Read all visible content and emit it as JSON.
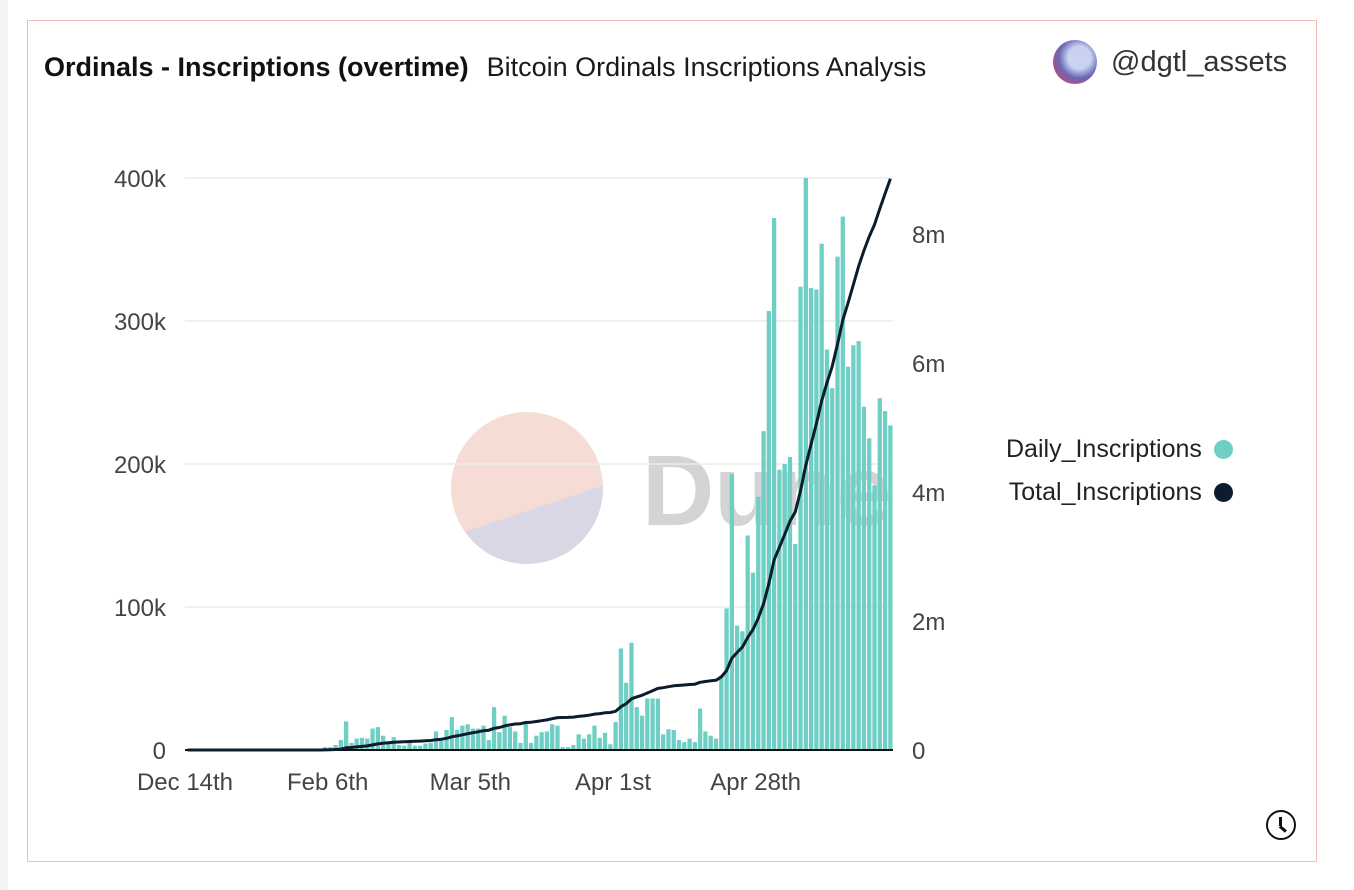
{
  "header": {
    "title": "Ordinals - Inscriptions (overtime)",
    "subtitle": "Bitcoin Ordinals Inscriptions Analysis",
    "author": "@dgtl_assets"
  },
  "watermark": "Dune",
  "colors": {
    "daily": "#6fcfc4",
    "total": "#0c1c2c"
  },
  "icons": {
    "avatar": "user-avatar",
    "refresh": "clock-icon"
  },
  "chart_data": {
    "type": "bar+line",
    "x_tick_labels": [
      "Dec 14th",
      "Feb 6th",
      "Mar 5th",
      "Apr 1st",
      "Apr 28th"
    ],
    "x_tick_every_days": 27,
    "y_left": {
      "ticks": [
        "0",
        "100k",
        "200k",
        "300k",
        "400k"
      ],
      "range": [
        0,
        400000
      ]
    },
    "y_right": {
      "ticks": [
        "0",
        "2m",
        "4m",
        "6m",
        "8m"
      ],
      "range": [
        0,
        8870000
      ]
    },
    "grid": true,
    "legend_position": "right",
    "series": [
      {
        "name": "Daily_Inscriptions",
        "type": "bar",
        "axis": "left",
        "values_k": [
          0,
          0,
          0,
          0,
          0,
          0,
          0,
          0,
          0,
          0,
          0,
          0,
          0,
          0,
          0,
          0,
          0,
          0,
          0,
          0,
          0,
          0,
          0,
          0,
          0,
          0,
          2,
          2,
          3.5,
          7,
          20,
          5,
          8,
          8.5,
          8,
          15,
          16,
          10,
          6,
          9,
          3.5,
          3,
          5,
          3,
          3,
          4.5,
          5,
          13,
          7,
          14,
          23,
          14,
          17,
          18,
          15,
          15,
          17,
          7,
          30,
          12.5,
          24,
          16,
          13,
          5,
          19,
          5,
          10,
          12.5,
          13,
          18,
          17,
          2,
          2,
          3.5,
          11,
          8,
          11,
          17,
          8.5,
          12,
          4,
          19.5,
          71,
          47,
          75,
          30,
          24,
          36,
          36,
          36,
          11,
          14.5,
          14,
          7,
          5.5,
          8,
          5.5,
          29,
          13,
          10,
          8,
          52,
          99,
          193,
          87,
          83,
          150,
          124,
          177,
          223,
          307,
          372,
          196,
          200,
          205,
          144,
          324,
          400,
          323,
          322,
          354,
          280,
          253,
          345,
          373,
          268,
          283,
          286,
          240,
          218,
          185,
          246,
          237,
          227
        ]
      },
      {
        "name": "Total_Inscriptions",
        "type": "line",
        "axis": "right",
        "derived": "cumulative sum of Daily_Inscriptions"
      }
    ]
  }
}
